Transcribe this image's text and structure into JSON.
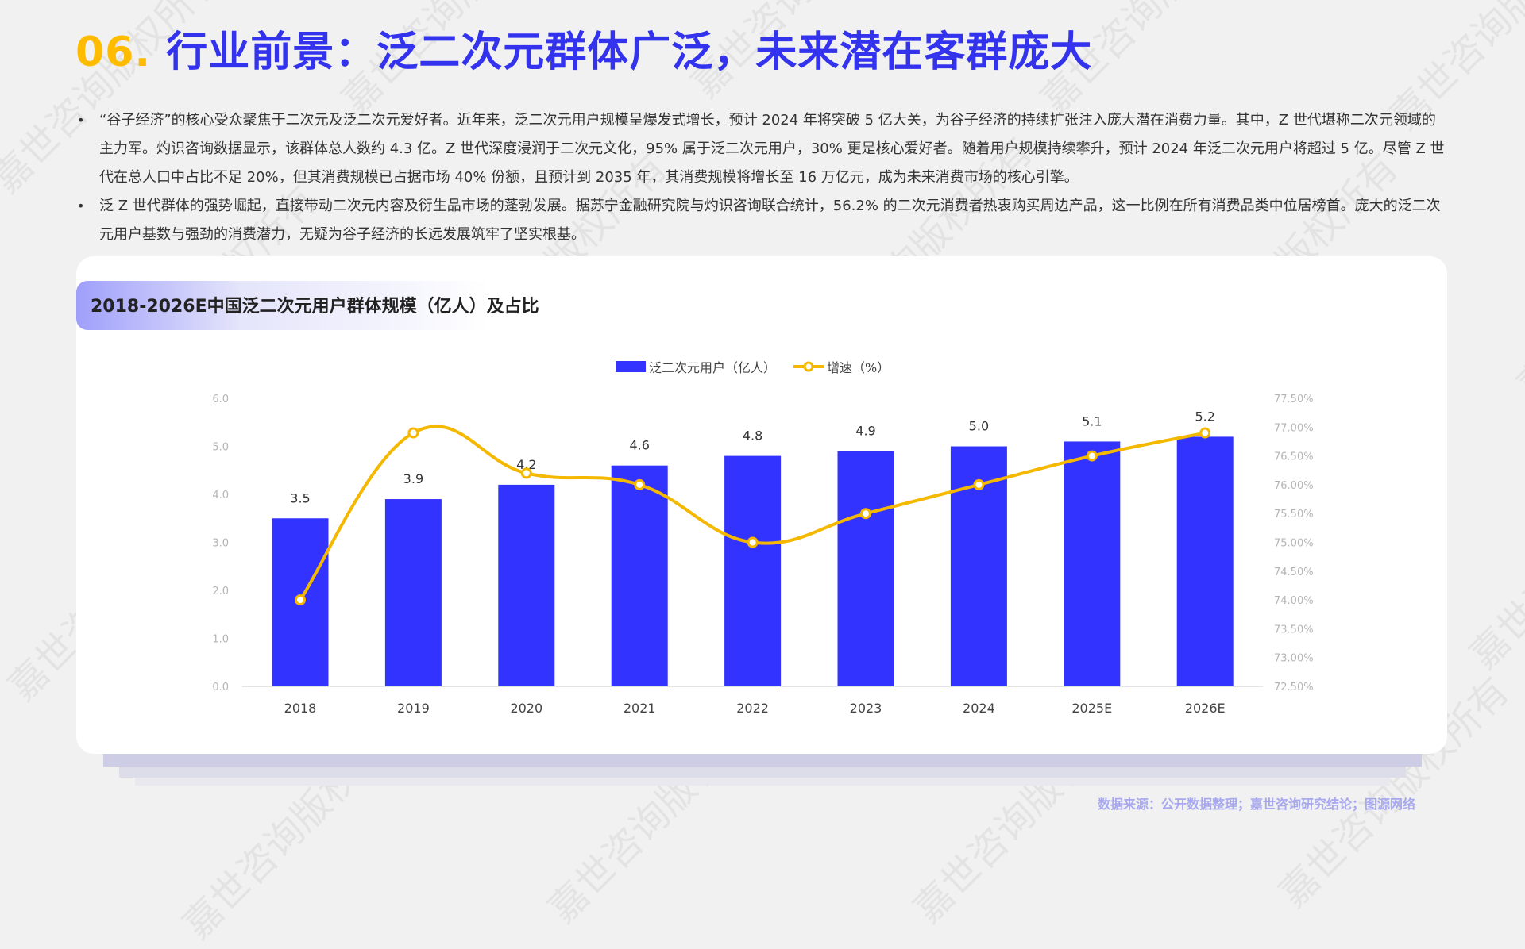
{
  "header": {
    "number": "06.",
    "title": "行业前景：泛二次元群体广泛，未来潜在客群庞大"
  },
  "bullets": [
    "“谷子经济”的核心受众聚焦于二次元及泛二次元爱好者。近年来，泛二次元用户规模呈爆发式增长，预计 2024 年将突破 5 亿大关，为谷子经济的持续扩张注入庞大潜在消费力量。其中，Z 世代堪称二次元领域的主力军。灼识咨询数据显示，该群体总人数约 4.3 亿。Z 世代深度浸润于二次元文化，95% 属于泛二次元用户，30% 更是核心爱好者。随着用户规模持续攀升，预计 2024 年泛二次元用户将超过 5 亿。尽管 Z 世代在总人口中占比不足 20%，但其消费规模已占据市场 40% 份额，且预计到 2035 年，其消费规模将增长至 16 万亿元，成为未来消费市场的核心引擎。",
    "泛 Z 世代群体的强势崛起，直接带动二次元内容及衍生品市场的蓬勃发展。据苏宁金融研究院与灼识咨询联合统计，56.2% 的二次元消费者热衷购买周边产品，这一比例在所有消费品类中位居榜首。庞大的泛二次元用户基数与强劲的消费潜力，无疑为谷子经济的长远发展筑牢了坚实根基。"
  ],
  "card": {
    "title": "2018-2026E中国泛二次元用户群体规模（亿人）及占比"
  },
  "legend": {
    "bar_label": "泛二次元用户（亿人）",
    "line_label": "增速（%）"
  },
  "colors": {
    "bar": "#3333ff",
    "line": "#f5b800",
    "title_number": "#ffbb00",
    "title_text": "#3333ee",
    "source": "#a8a8ee"
  },
  "source": "数据来源：公开数据整理；嘉世咨询研究结论；图源网络",
  "watermark": "嘉世咨询版权所有",
  "chart_data": {
    "type": "bar",
    "title": "2018-2026E中国泛二次元用户群体规模（亿人）及占比",
    "categories": [
      "2018",
      "2019",
      "2020",
      "2021",
      "2022",
      "2023",
      "2024",
      "2025E",
      "2026E"
    ],
    "series": [
      {
        "name": "泛二次元用户（亿人）",
        "type": "bar",
        "axis": "left",
        "values": [
          3.5,
          3.9,
          4.2,
          4.6,
          4.8,
          4.9,
          5.0,
          5.1,
          5.2
        ]
      },
      {
        "name": "增速（%）",
        "type": "line",
        "axis": "right",
        "values": [
          74.0,
          76.9,
          76.2,
          76.0,
          75.0,
          75.5,
          76.0,
          76.5,
          76.9
        ]
      }
    ],
    "left_axis": {
      "ticks": [
        "0.0",
        "1.0",
        "2.0",
        "3.0",
        "4.0",
        "5.0",
        "6.0"
      ],
      "ylim": [
        0,
        6
      ]
    },
    "right_axis": {
      "ticks": [
        "72.50%",
        "73.00%",
        "73.50%",
        "74.00%",
        "74.50%",
        "75.00%",
        "75.50%",
        "76.00%",
        "76.50%",
        "77.00%",
        "77.50%"
      ],
      "ylim": [
        72.5,
        77.5
      ]
    },
    "legend_position": "top",
    "grid": false,
    "xlabel": "",
    "ylabel": ""
  }
}
